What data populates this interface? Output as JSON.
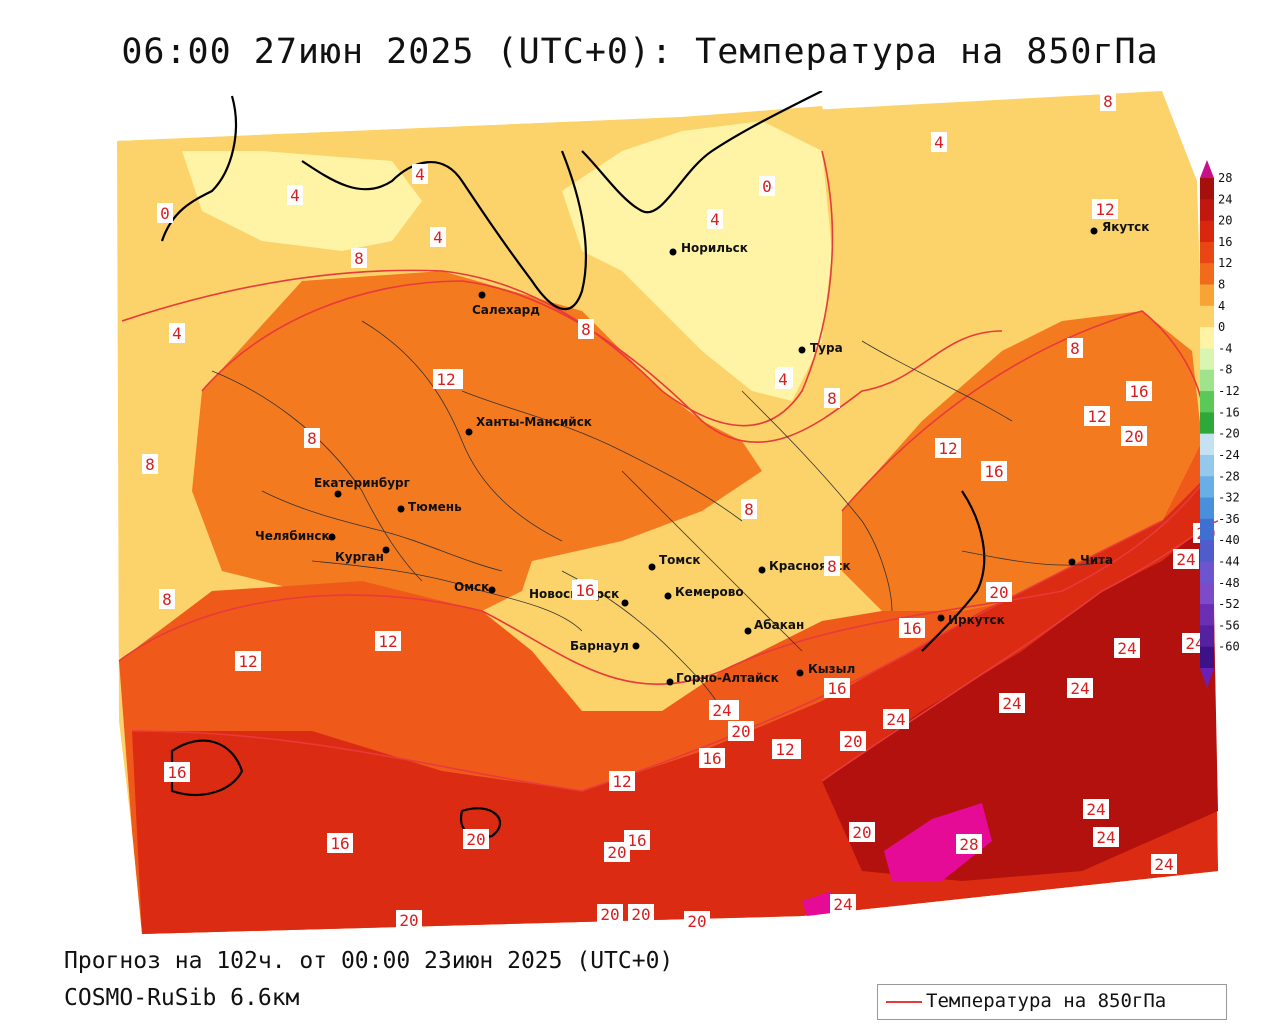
{
  "title": "06:00 27июн 2025 (UTC+0): Температура на 850гПа",
  "footer": {
    "forecast": "Прогноз на 102ч. от 00:00 23июн 2025 (UTC+0)",
    "model": "COSMO-RuSib 6.6км"
  },
  "legend": {
    "label": "Температура на 850гПа",
    "line_color": "#e83a3a"
  },
  "colors": {
    "t0_4": "#fff3a6",
    "t4_8": "#fbd36a",
    "t8_12": "#f7ab3c",
    "t12_16": "#f47a20",
    "t16_20": "#ef5a1b",
    "t20_24": "#db2b12",
    "t24_28": "#b2110d",
    "t28": "#e60b96",
    "contour": "#e83a3a"
  },
  "colorbar": {
    "ticks": [
      "28",
      "24",
      "20",
      "16",
      "12",
      "8",
      "4",
      "0",
      "-4",
      "-8",
      "-12",
      "-16",
      "-20",
      "-24",
      "-28",
      "-32",
      "-36",
      "-40",
      "-44",
      "-48",
      "-52",
      "-56",
      "-60"
    ],
    "colors": [
      "#a5100d",
      "#c0170f",
      "#d9260f",
      "#ea4614",
      "#f26b1d",
      "#f7a336",
      "#fbd36a",
      "#fff3a6",
      "#d8f5b2",
      "#9fe38c",
      "#5bc95a",
      "#2ea83a",
      "#c4e2f2",
      "#95c9ec",
      "#6aaee6",
      "#4a8fdc",
      "#3f6fd0",
      "#4e5ccc",
      "#6c55cf",
      "#7e4bc8",
      "#6a2fb3",
      "#55219f",
      "#3d1287"
    ]
  },
  "cities": [
    "Норильск",
    "Якутск",
    "Салехард",
    "Тура",
    "Ханты-Мансийск",
    "Екатеринбург",
    "Тюмень",
    "Челябинск",
    "Курган",
    "Омск",
    "Новосибирск",
    "Томск",
    "Кемерово",
    "Красноярск",
    "Абакан",
    "Барнаул",
    "Горно-Алтайск",
    "Кызыл",
    "Иркутск",
    "Чита"
  ],
  "contour_labels": [
    "8",
    "4",
    "0",
    "4",
    "4",
    "4",
    "4",
    "0",
    "8",
    "12",
    "8",
    "8",
    "4",
    "12",
    "8",
    "8",
    "4",
    "8",
    "12",
    "8",
    "16",
    "12",
    "16",
    "20",
    "12",
    "8",
    "8",
    "8",
    "8",
    "12",
    "12",
    "8",
    "16",
    "16",
    "20",
    "24",
    "24",
    "24",
    "20",
    "24",
    "24",
    "16",
    "16",
    "20",
    "24",
    "16",
    "12",
    "24",
    "20",
    "24",
    "16",
    "16",
    "20",
    "24",
    "20",
    "28",
    "24",
    "24",
    "12",
    "20",
    "20",
    "20",
    "20",
    "24",
    "20",
    "16"
  ]
}
